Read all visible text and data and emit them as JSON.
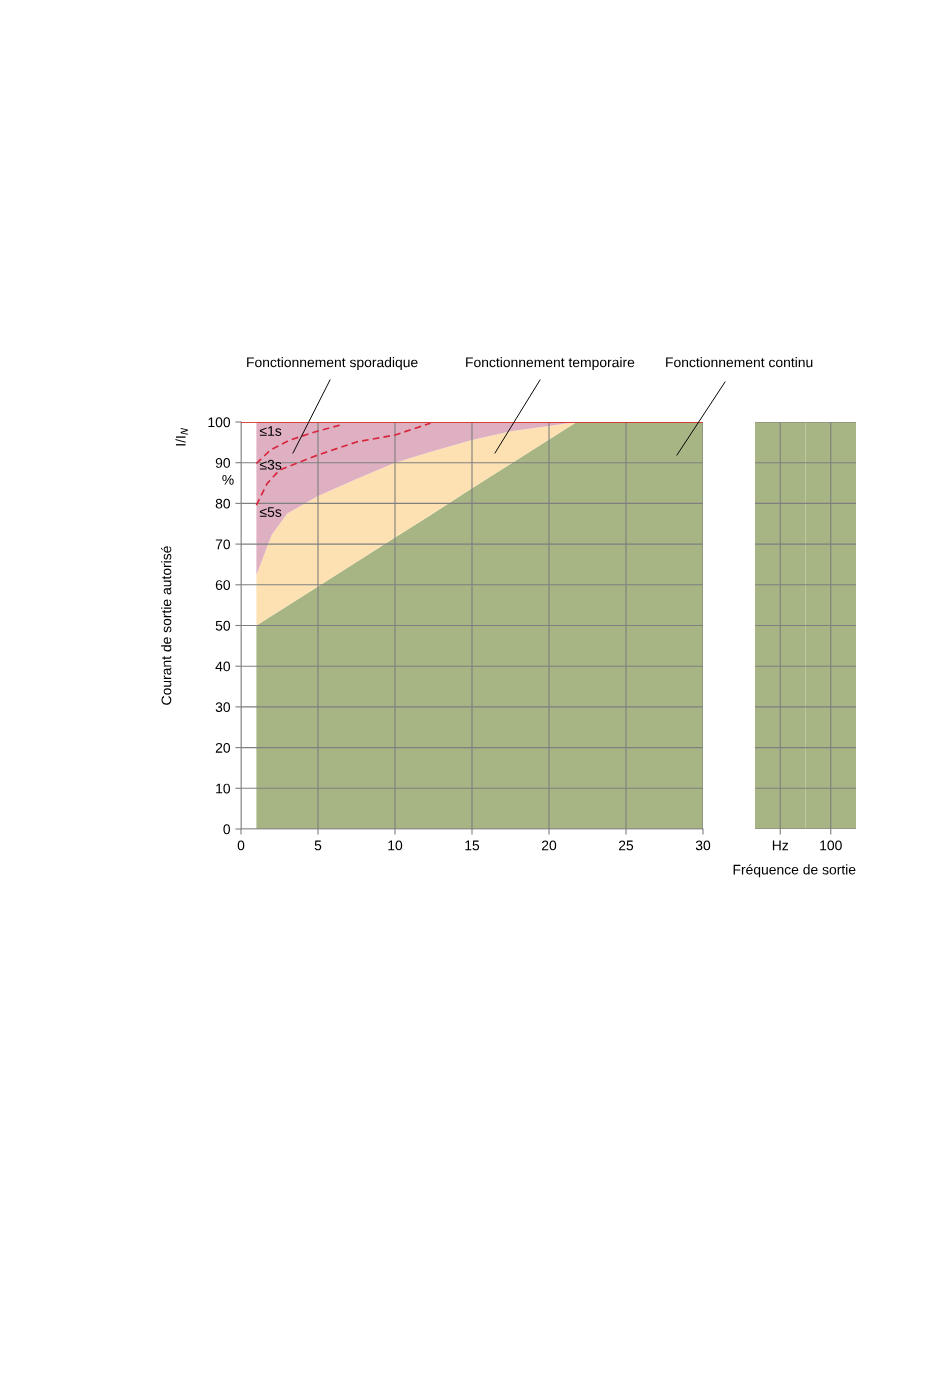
{
  "chart_data": [
    {
      "type": "area",
      "ylabel": "Courant de sortie autorisé",
      "xlim": [
        0,
        30
      ],
      "xticks": [
        0,
        5,
        10,
        15,
        20,
        25,
        30
      ],
      "ylim": [
        0,
        100
      ],
      "yticks": [
        0,
        10,
        20,
        30,
        40,
        50,
        60,
        70,
        80,
        90,
        100
      ],
      "grid": true,
      "annotations": [
        "Fonctionnement sporadique",
        "Fonctionnement temporaire",
        "Fonctionnement continu",
        "≤1s",
        "≤3s",
        "≤5s",
        "I/I$_{N}$",
        "%"
      ],
      "stacked": true,
      "x": [
        1,
        2,
        3,
        5,
        7.5,
        10,
        12.5,
        15,
        17.5,
        20,
        21.8,
        25,
        30
      ],
      "ref_lines": [
        {
          "axis": "y",
          "value": 100,
          "color": "#e2231a"
        }
      ],
      "series": [
        {
          "color": "#a6b583",
          "values": [
            50,
            52.4,
            54.8,
            59.6,
            65.6,
            71.6,
            77.6,
            83.7,
            89.7,
            95.7,
            100,
            100,
            100
          ]
        },
        {
          "color": "#fde1b3",
          "values": [
            12.4,
            19.9,
            22.7,
            22.2,
            20.4,
            18.4,
            15.3,
            11.9,
            8,
            3.3,
            0,
            0,
            0
          ]
        },
        {
          "color": "#dfb0c2",
          "values": [
            37.6,
            27.7,
            22.5,
            18.2,
            14,
            10,
            7.1,
            4.4,
            2.3,
            1,
            0,
            0,
            0
          ]
        },
        {
          "type": "line",
          "color": "#d7263d",
          "line_style": "dashed",
          "x": [
            1,
            1.9,
            3.2,
            5,
            6.5
          ],
          "values": [
            89.8,
            93.1,
            95.6,
            97.8,
            99.3
          ]
        },
        {
          "type": "line",
          "color": "#d7263d",
          "line_style": "dashed",
          "x": [
            1,
            1.7,
            2.5,
            5,
            7.5,
            10,
            12.3
          ],
          "values": [
            79.6,
            84.9,
            88.2,
            91.9,
            95.1,
            96.8,
            99.7
          ]
        }
      ]
    },
    {
      "type": "bar",
      "categories": [
        null,
        "100"
      ],
      "xlabel": "Fréquence de sortie",
      "ylim": [
        0,
        100
      ],
      "yticks": [
        0,
        10,
        20,
        30,
        40,
        50,
        60,
        70,
        80,
        90,
        100
      ],
      "grid": true,
      "tick_labels": "x",
      "annotations": [
        "Hz"
      ],
      "series": [
        {
          "color": "#a6b583",
          "values": [
            100,
            100
          ]
        }
      ]
    }
  ]
}
